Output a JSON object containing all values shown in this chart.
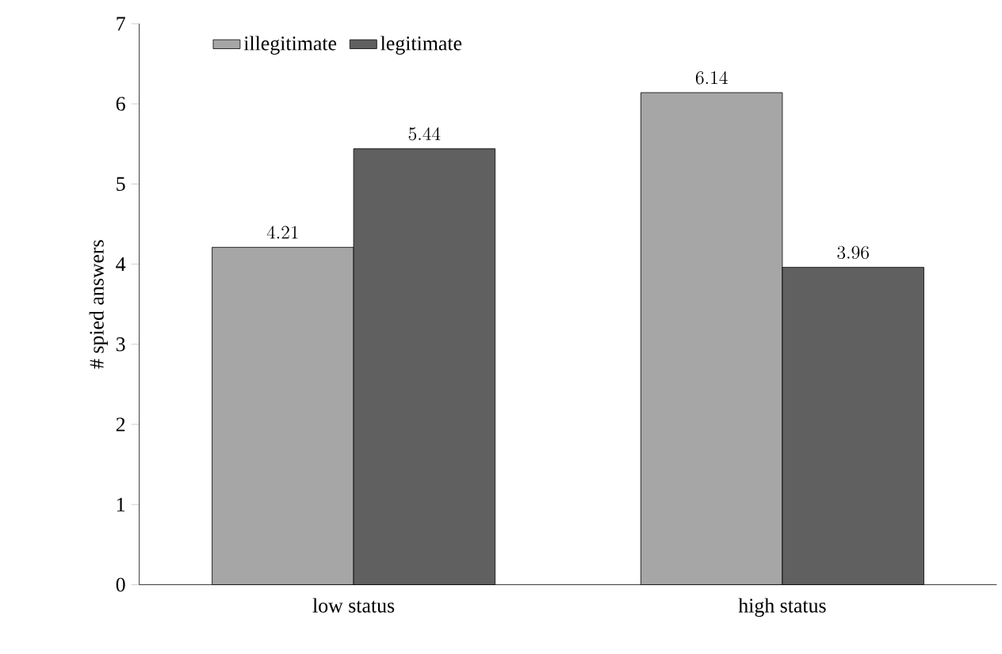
{
  "chart_data": {
    "type": "bar",
    "ylabel": "# spied answers",
    "categories": [
      "low status",
      "high status"
    ],
    "series": [
      {
        "name": "illegitimate",
        "color": "#a6a6a6",
        "values": [
          4.21,
          6.14
        ]
      },
      {
        "name": "legitimate",
        "color": "#606060",
        "values": [
          5.44,
          3.96
        ]
      }
    ],
    "ylim": [
      0,
      7
    ],
    "yticks": [
      0,
      1,
      2,
      3,
      4,
      5,
      6,
      7
    ],
    "data_labels": true,
    "legend": "top left",
    "grid": false
  }
}
